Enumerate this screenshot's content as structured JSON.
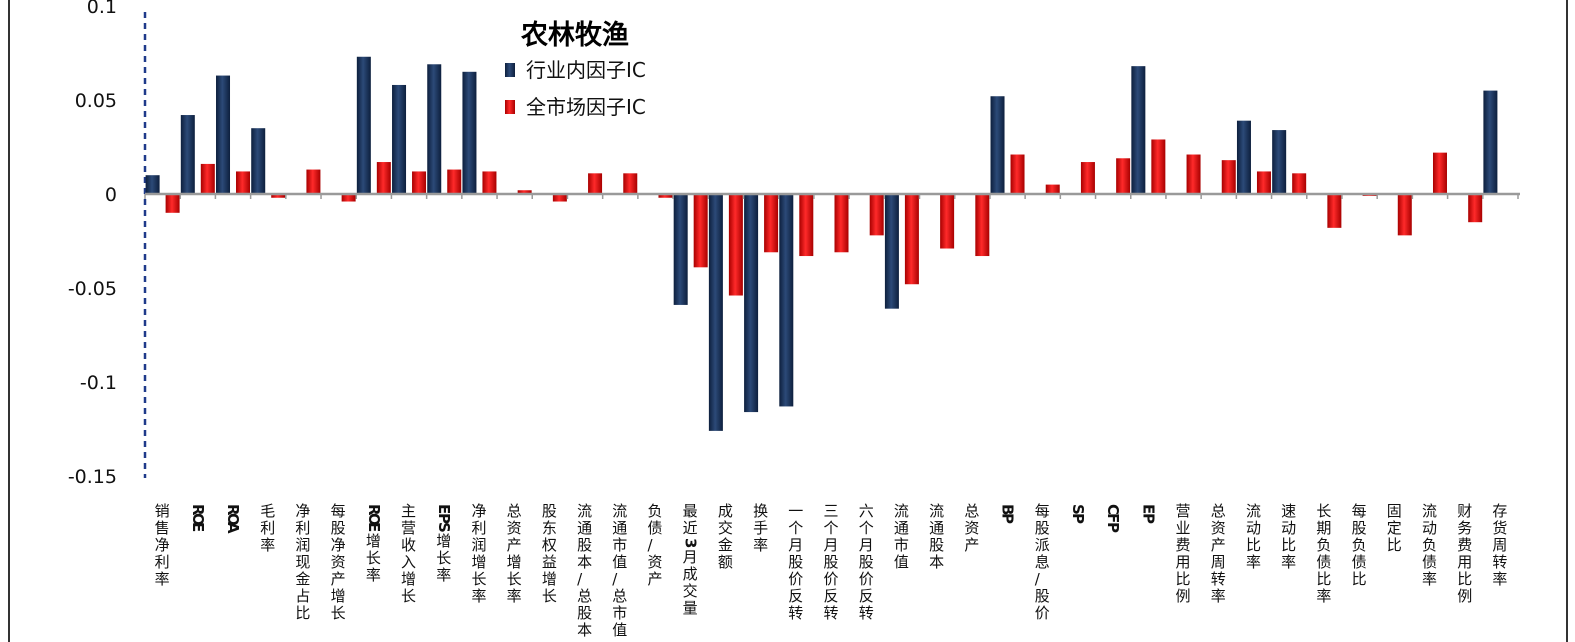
{
  "chart_data": {
    "type": "bar",
    "title": "农林牧渔",
    "ylim": [
      -0.15,
      0.1
    ],
    "yticks": [
      "0.1",
      "0.05",
      "0",
      "-0.05",
      "-0.1",
      "-0.15"
    ],
    "ytick_values": [
      0.1,
      0.05,
      0,
      -0.05,
      -0.1,
      -0.15
    ],
    "legend_position": "top-center",
    "categories": [
      "销售净利率",
      "ROE",
      "ROA",
      "毛利率",
      "净利润现金占比",
      "每股净资产增长",
      "ROE增长率",
      "主营收入增长",
      "EPS增长率",
      "净利润增长率",
      "总资产增长率",
      "股东权益增长",
      "流通股本/总股本",
      "流通市值/总市值",
      "负债/资产",
      "最近3月成交量",
      "成交金额",
      "换手率",
      "一个月股价反转",
      "三个月股价反转",
      "六个月股价反转",
      "流通市值",
      "流通股本",
      "总资产",
      "BP",
      "每股派息/股价",
      "SP",
      "CFP",
      "EP",
      "营业费用比例",
      "总资产周转率",
      "流动比率",
      "速动比率",
      "长期负债比率",
      "每股负债比",
      "固定比",
      "流动负债率",
      "财务费用比例",
      "存货周转率"
    ],
    "series": [
      {
        "name": "行业内因子IC",
        "color": "#1f3864",
        "values": [
          0.01,
          0.042,
          0.063,
          0.035,
          null,
          null,
          0.073,
          0.058,
          0.069,
          0.065,
          null,
          null,
          null,
          null,
          null,
          -0.059,
          -0.126,
          -0.116,
          -0.113,
          null,
          null,
          -0.061,
          null,
          null,
          0.052,
          null,
          null,
          null,
          0.068,
          null,
          null,
          0.039,
          0.034,
          null,
          null,
          null,
          null,
          null,
          0.055
        ]
      },
      {
        "name": "全市场因子IC",
        "color": "#e00000",
        "values": [
          -0.01,
          0.016,
          0.012,
          -0.002,
          0.013,
          -0.004,
          0.017,
          0.012,
          0.013,
          0.012,
          0.002,
          -0.004,
          0.011,
          0.011,
          -0.002,
          -0.039,
          -0.054,
          -0.031,
          -0.033,
          -0.031,
          -0.022,
          -0.048,
          -0.029,
          -0.033,
          0.021,
          0.005,
          0.017,
          0.019,
          0.029,
          0.021,
          0.018,
          0.012,
          0.011,
          -0.018,
          -0.001,
          -0.022,
          0.022,
          -0.015,
          null
        ]
      }
    ]
  }
}
